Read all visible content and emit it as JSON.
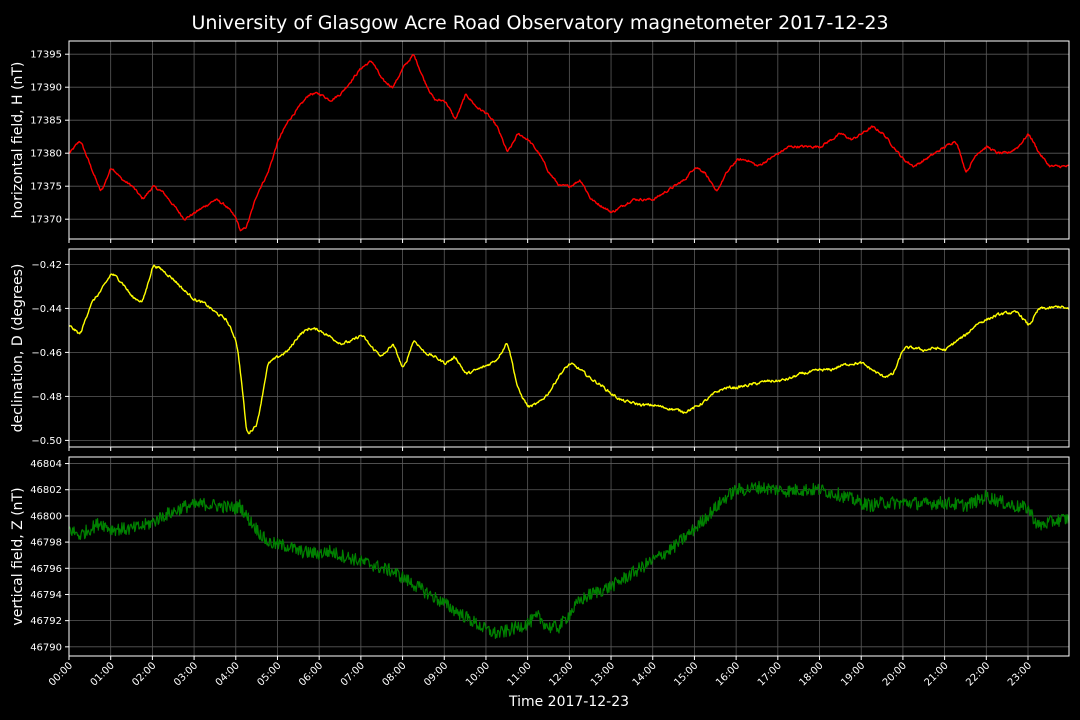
{
  "chart_data": {
    "type": "line",
    "title": "University of Glasgow Acre Road Observatory magnetometer 2017-12-23",
    "xlabel": "Time 2017-12-23",
    "x_ticks": [
      "00:00",
      "01:00",
      "02:00",
      "03:00",
      "04:00",
      "05:00",
      "06:00",
      "07:00",
      "08:00",
      "09:00",
      "10:00",
      "11:00",
      "12:00",
      "13:00",
      "14:00",
      "15:00",
      "16:00",
      "17:00",
      "18:00",
      "19:00",
      "20:00",
      "21:00",
      "22:00",
      "23:00"
    ],
    "xlim": [
      "00:00",
      "23:59"
    ],
    "grid": true,
    "panels": [
      {
        "ylabel": "horizontal field, H (nT)",
        "color": "#ff0000",
        "ylim": [
          17367,
          17397
        ],
        "y_ticks": [
          "17370",
          "17375",
          "17380",
          "17385",
          "17390",
          "17395"
        ],
        "noise": 0.35,
        "series": {
          "name": "H",
          "time_hours": [
            0,
            0.25,
            0.5,
            0.75,
            1.0,
            1.25,
            1.5,
            1.75,
            2.0,
            2.25,
            2.5,
            2.75,
            3.0,
            3.25,
            3.5,
            3.75,
            4.0,
            4.1,
            4.25,
            4.5,
            4.75,
            5.0,
            5.25,
            5.5,
            5.75,
            6.0,
            6.25,
            6.5,
            6.75,
            7.0,
            7.25,
            7.5,
            7.75,
            8.0,
            8.25,
            8.5,
            8.75,
            9.0,
            9.25,
            9.5,
            9.75,
            10.0,
            10.25,
            10.5,
            10.75,
            11.0,
            11.25,
            11.5,
            11.75,
            12.0,
            12.25,
            12.5,
            12.75,
            13.0,
            13.25,
            13.5,
            13.75,
            14.0,
            14.25,
            14.5,
            14.75,
            15.0,
            15.25,
            15.5,
            15.75,
            16.0,
            16.25,
            16.5,
            16.75,
            17.0,
            17.25,
            17.5,
            17.75,
            18.0,
            18.25,
            18.5,
            18.75,
            19.0,
            19.25,
            19.5,
            19.75,
            20.0,
            20.25,
            20.5,
            20.75,
            21.0,
            21.25,
            21.5,
            21.75,
            22.0,
            22.25,
            22.5,
            22.75,
            23.0,
            23.25,
            23.5,
            23.75,
            24.0
          ],
          "values": [
            17380,
            17382,
            17378,
            17374,
            17378,
            17376,
            17375,
            17373,
            17375,
            17374,
            17372,
            17370,
            17371,
            17372,
            17373,
            17372,
            17370,
            17368,
            17369,
            17374,
            17377,
            17382,
            17385,
            17387,
            17389,
            17389,
            17388,
            17389,
            17391,
            17393,
            17394,
            17391,
            17390,
            17393,
            17395,
            17391,
            17388,
            17388,
            17385,
            17389,
            17387,
            17386,
            17384,
            17380,
            17383,
            17382,
            17380,
            17377,
            17375,
            17375,
            17376,
            17373,
            17372,
            17371,
            17372,
            17373,
            17373,
            17373,
            17374,
            17375,
            17376,
            17378,
            17377,
            17374,
            17377,
            17379,
            17379,
            17378,
            17379,
            17380,
            17381,
            17381,
            17381,
            17381,
            17382,
            17383,
            17382,
            17383,
            17384,
            17383,
            17381,
            17379,
            17378,
            17379,
            17380,
            17381,
            17382,
            17377,
            17380,
            17381,
            17380,
            17380,
            17381,
            17383,
            17380,
            17378,
            17378,
            17378
          ]
        }
      },
      {
        "ylabel": "declination, D (degrees)",
        "color": "#ffff00",
        "ylim": [
          -0.503,
          -0.413
        ],
        "y_ticks": [
          "−0.42",
          "−0.44",
          "−0.46",
          "−0.48",
          "−0.50"
        ],
        "noise": 0.0012,
        "series": {
          "name": "D",
          "time_hours": [
            0,
            0.25,
            0.5,
            0.75,
            1.0,
            1.25,
            1.5,
            1.75,
            2.0,
            2.25,
            2.5,
            2.75,
            3.0,
            3.25,
            3.5,
            3.75,
            4.0,
            4.1,
            4.25,
            4.5,
            4.75,
            5.0,
            5.25,
            5.5,
            5.75,
            6.0,
            6.25,
            6.5,
            6.75,
            7.0,
            7.25,
            7.5,
            7.75,
            8.0,
            8.25,
            8.5,
            8.75,
            9.0,
            9.25,
            9.5,
            9.75,
            10.0,
            10.25,
            10.5,
            10.75,
            11.0,
            11.25,
            11.5,
            11.75,
            12.0,
            12.25,
            12.5,
            12.75,
            13.0,
            13.25,
            13.5,
            13.75,
            14.0,
            14.25,
            14.5,
            14.75,
            15.0,
            15.25,
            15.5,
            15.75,
            16.0,
            16.25,
            16.5,
            16.75,
            17.0,
            17.25,
            17.5,
            17.75,
            18.0,
            18.25,
            18.5,
            18.75,
            19.0,
            19.25,
            19.5,
            19.75,
            20.0,
            20.25,
            20.5,
            20.75,
            21.0,
            21.25,
            21.5,
            21.75,
            22.0,
            22.25,
            22.5,
            22.75,
            23.0,
            23.25,
            23.5,
            23.75,
            24.0
          ],
          "values": [
            -0.448,
            -0.452,
            -0.438,
            -0.432,
            -0.424,
            -0.428,
            -0.435,
            -0.437,
            -0.42,
            -0.423,
            -0.427,
            -0.432,
            -0.436,
            -0.438,
            -0.442,
            -0.445,
            -0.455,
            -0.47,
            -0.498,
            -0.492,
            -0.465,
            -0.462,
            -0.459,
            -0.452,
            -0.449,
            -0.45,
            -0.453,
            -0.456,
            -0.455,
            -0.452,
            -0.458,
            -0.462,
            -0.456,
            -0.468,
            -0.454,
            -0.46,
            -0.462,
            -0.465,
            -0.462,
            -0.47,
            -0.468,
            -0.466,
            -0.463,
            -0.455,
            -0.477,
            -0.485,
            -0.483,
            -0.478,
            -0.47,
            -0.465,
            -0.468,
            -0.472,
            -0.475,
            -0.479,
            -0.482,
            -0.483,
            -0.484,
            -0.484,
            -0.485,
            -0.486,
            -0.487,
            -0.485,
            -0.482,
            -0.478,
            -0.476,
            -0.476,
            -0.475,
            -0.474,
            -0.473,
            -0.473,
            -0.472,
            -0.47,
            -0.469,
            -0.468,
            -0.468,
            -0.466,
            -0.465,
            -0.465,
            -0.468,
            -0.471,
            -0.47,
            -0.458,
            -0.458,
            -0.459,
            -0.458,
            -0.459,
            -0.455,
            -0.452,
            -0.447,
            -0.445,
            -0.443,
            -0.442,
            -0.442,
            -0.448,
            -0.44,
            -0.44,
            -0.439,
            -0.441
          ]
        }
      },
      {
        "ylabel": "vertical field, Z (nT)",
        "color": "#008000",
        "ylim": [
          46789.3,
          46804.5
        ],
        "y_ticks": [
          "46790",
          "46792",
          "46794",
          "46796",
          "46798",
          "46800",
          "46802",
          "46804"
        ],
        "noise": 0.5,
        "series": {
          "name": "Z",
          "time_hours": [
            0,
            0.25,
            0.5,
            0.75,
            1.0,
            1.25,
            1.5,
            1.75,
            2.0,
            2.25,
            2.5,
            2.75,
            3.0,
            3.25,
            3.5,
            3.75,
            4.0,
            4.1,
            4.25,
            4.5,
            4.75,
            5.0,
            5.25,
            5.5,
            5.75,
            6.0,
            6.25,
            6.5,
            6.75,
            7.0,
            7.25,
            7.5,
            7.75,
            8.0,
            8.25,
            8.5,
            8.75,
            9.0,
            9.25,
            9.5,
            9.75,
            10.0,
            10.25,
            10.5,
            10.75,
            11.0,
            11.25,
            11.5,
            11.75,
            12.0,
            12.25,
            12.5,
            12.75,
            13.0,
            13.25,
            13.5,
            13.75,
            14.0,
            14.25,
            14.5,
            14.75,
            15.0,
            15.25,
            15.5,
            15.75,
            16.0,
            16.25,
            16.5,
            16.75,
            17.0,
            17.25,
            17.5,
            17.75,
            18.0,
            18.25,
            18.5,
            18.75,
            19.0,
            19.25,
            19.5,
            19.75,
            20.0,
            20.25,
            20.5,
            20.75,
            21.0,
            21.25,
            21.5,
            21.75,
            22.0,
            22.25,
            22.5,
            22.75,
            23.0,
            23.25,
            23.5,
            23.75,
            24.0
          ],
          "values": [
            46799,
            46798.5,
            46799,
            46799.5,
            46799,
            46799,
            46799,
            46799.2,
            46799.5,
            46800,
            46800.3,
            46800.7,
            46800.8,
            46800.9,
            46800.8,
            46800.7,
            46800.6,
            46800.8,
            46800,
            46799,
            46798,
            46797.8,
            46797.7,
            46797.3,
            46797.2,
            46797.1,
            46797.3,
            46797,
            46796.8,
            46796.5,
            46796.3,
            46796,
            46795.8,
            46795.3,
            46794.8,
            46794.3,
            46793.8,
            46793.3,
            46792.8,
            46792.3,
            46791.8,
            46791.3,
            46791,
            46791.2,
            46791.5,
            46791.8,
            46792.3,
            46791.5,
            46791.5,
            46792.5,
            46793.5,
            46794,
            46794.3,
            46794.6,
            46795.1,
            46795.6,
            46796.1,
            46796.6,
            46797.1,
            46797.6,
            46798.3,
            46799,
            46799.8,
            46800.6,
            46801.4,
            46802,
            46802,
            46802.2,
            46802.1,
            46802,
            46801.9,
            46802,
            46802,
            46802,
            46801.8,
            46801.6,
            46801.3,
            46801,
            46800.8,
            46801,
            46801,
            46801,
            46801,
            46800.9,
            46801,
            46801,
            46800.9,
            46800.8,
            46801.1,
            46801.5,
            46801.2,
            46800.9,
            46800.7,
            46800.6,
            46799.2,
            46799.5,
            46799.7,
            46799.8
          ]
        }
      }
    ]
  }
}
